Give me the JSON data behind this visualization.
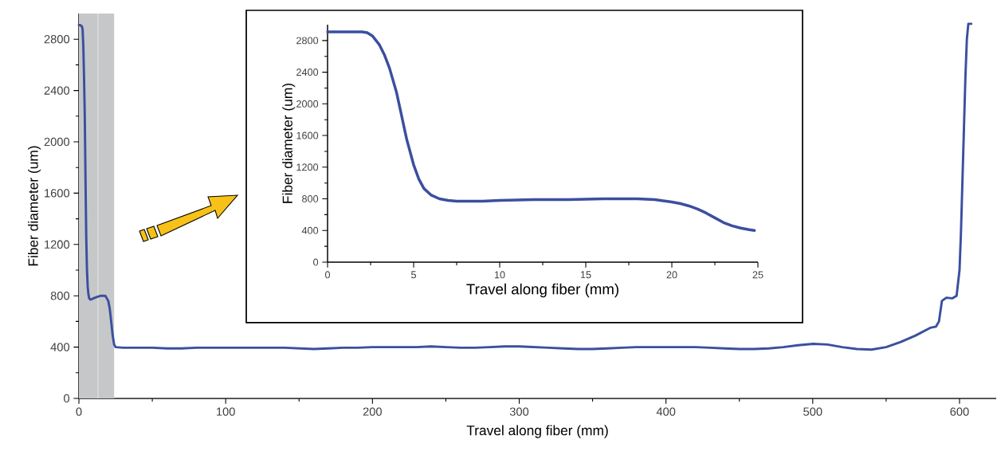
{
  "chart_data": [
    {
      "type": "line",
      "xlabel": "Travel along fiber (mm)",
      "ylabel": "Fiber diameter (um)",
      "color": "#3b4fa0",
      "x": [
        0,
        1,
        2,
        2.5,
        3,
        3.5,
        4,
        4.5,
        5,
        5.5,
        6,
        6.5,
        7,
        8,
        10,
        12,
        15,
        18,
        20,
        21,
        22,
        23,
        24,
        25,
        30,
        40,
        50,
        60,
        70,
        80,
        90,
        100,
        110,
        120,
        130,
        140,
        150,
        160,
        170,
        180,
        190,
        200,
        210,
        220,
        230,
        240,
        250,
        260,
        270,
        280,
        290,
        300,
        310,
        320,
        330,
        340,
        350,
        360,
        370,
        380,
        390,
        400,
        410,
        420,
        430,
        440,
        450,
        460,
        470,
        480,
        490,
        500,
        510,
        520,
        530,
        540,
        550,
        560,
        570,
        580,
        584,
        586,
        588,
        591,
        595,
        598,
        600,
        601,
        602,
        603,
        604,
        605,
        606,
        608
      ],
      "values": [
        2910,
        2910,
        2900,
        2880,
        2750,
        2500,
        2200,
        1700,
        1250,
        1000,
        870,
        810,
        780,
        770,
        780,
        790,
        800,
        800,
        760,
        700,
        600,
        490,
        420,
        400,
        395,
        395,
        395,
        390,
        390,
        395,
        395,
        395,
        395,
        395,
        395,
        395,
        390,
        385,
        390,
        395,
        395,
        400,
        400,
        400,
        400,
        405,
        400,
        395,
        395,
        400,
        405,
        405,
        400,
        395,
        390,
        385,
        385,
        390,
        395,
        400,
        400,
        400,
        400,
        400,
        395,
        390,
        385,
        385,
        390,
        400,
        415,
        425,
        420,
        400,
        385,
        380,
        400,
        440,
        490,
        550,
        560,
        600,
        760,
        785,
        780,
        800,
        1000,
        1300,
        1700,
        2100,
        2500,
        2800,
        2920,
        2920
      ],
      "xlim": [
        0,
        625
      ],
      "ylim": [
        0,
        3000
      ],
      "xticks": [
        0,
        100,
        200,
        300,
        400,
        500,
        600
      ],
      "yticks": [
        0,
        400,
        800,
        1200,
        1600,
        2000,
        2400,
        2800
      ],
      "bands": [
        {
          "axis": "x",
          "from": 0,
          "to": 24,
          "color": "#c6c7c9"
        }
      ],
      "ref_lines": [
        {
          "axis": "x",
          "value": 13,
          "color": "#dfeadf"
        }
      ]
    },
    {
      "type": "line",
      "xlabel": "Travel along fiber (mm)",
      "ylabel": "Fiber diameter (um)",
      "color": "#3b4fa0",
      "x": [
        0,
        1,
        2,
        2.3,
        2.6,
        3,
        3.3,
        3.6,
        4,
        4.3,
        4.6,
        5,
        5.3,
        5.6,
        6,
        6.5,
        7,
        7.5,
        8,
        9,
        10,
        12,
        14,
        16,
        18,
        19,
        20,
        20.5,
        21,
        21.5,
        22,
        22.5,
        23,
        23.5,
        24,
        24.5,
        24.8
      ],
      "values": [
        2910,
        2910,
        2910,
        2900,
        2860,
        2750,
        2620,
        2450,
        2150,
        1850,
        1550,
        1230,
        1050,
        930,
        850,
        800,
        780,
        770,
        770,
        770,
        780,
        790,
        790,
        800,
        800,
        790,
        760,
        740,
        710,
        670,
        620,
        560,
        500,
        460,
        430,
        410,
        400
      ],
      "xlim": [
        0,
        25
      ],
      "ylim": [
        0,
        3000
      ],
      "xticks": [
        0,
        5,
        10,
        15,
        20,
        25
      ],
      "yticks": [
        0,
        400,
        800,
        1200,
        1600,
        2000,
        2400,
        2800
      ]
    }
  ]
}
